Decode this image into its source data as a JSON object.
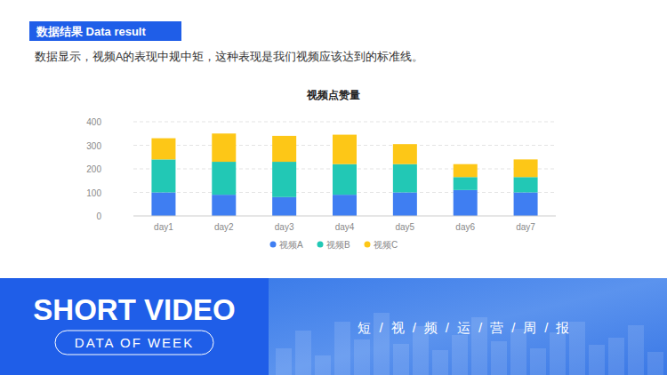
{
  "header": {
    "label": "数据结果  Data result",
    "description": "数据显示，视频A的表现中规中矩，这种表现是我们视频应该达到的标准线。"
  },
  "footer": {
    "title": "SHORT VIDEO",
    "subtitle": "DATA OF WEEK",
    "tagline": "短/视/频/运/营/周/报"
  },
  "chart_data": {
    "type": "bar",
    "title": "视频点赞量",
    "stacked": true,
    "grid": true,
    "legend": "bottom",
    "categories": [
      "day1",
      "day2",
      "day3",
      "day4",
      "day5",
      "day6",
      "day7"
    ],
    "series": [
      {
        "name": "视频A",
        "color": "#3f7ef2",
        "values": [
          100,
          90,
          80,
          90,
          100,
          110,
          100
        ]
      },
      {
        "name": "视频B",
        "color": "#22c8b5",
        "values": [
          140,
          140,
          150,
          130,
          120,
          55,
          65
        ]
      },
      {
        "name": "视频C",
        "color": "#fdc717",
        "values": [
          90,
          120,
          110,
          125,
          85,
          55,
          75
        ]
      }
    ],
    "ylim": [
      0,
      400
    ],
    "yticks": [
      0,
      100,
      200,
      300,
      400
    ]
  }
}
